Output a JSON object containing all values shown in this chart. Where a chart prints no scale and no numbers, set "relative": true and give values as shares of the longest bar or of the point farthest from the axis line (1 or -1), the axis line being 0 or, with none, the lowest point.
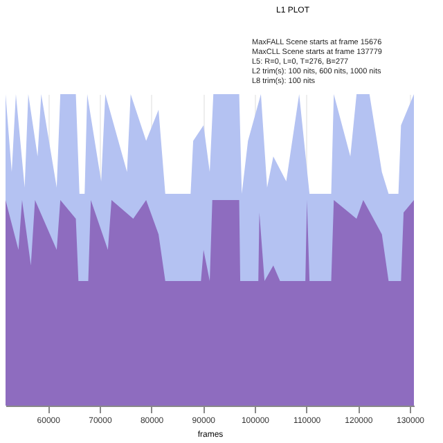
{
  "chart_data": {
    "type": "area",
    "title": "L1 PLOT",
    "xlabel": "frames",
    "relative": true,
    "grid": "x",
    "xlim": [
      51800,
      130800
    ],
    "xticks": [
      60000,
      70000,
      80000,
      90000,
      100000,
      110000,
      120000,
      130000
    ],
    "annotations": [
      "MaxFALL Scene starts at frame 15676",
      "MaxCLL Scene starts at frame 137779",
      "L5: R=0, L=0, T=276, B=277",
      "L2 trim(s): 100 nits, 600 nits, 1000 nits",
      "L8 trim(s): 100 nits"
    ],
    "series": [
      {
        "color": "#b4c2f2",
        "x": [
          51800,
          53000,
          53800,
          55500,
          56200,
          58000,
          58700,
          61700,
          62400,
          65400,
          66100,
          67100,
          67600,
          70300,
          71100,
          75300,
          76000,
          79000,
          81400,
          82700,
          87600,
          88100,
          90100,
          91300,
          92000,
          97000,
          97500,
          98700,
          101200,
          102400,
          103600,
          106100,
          108600,
          110600,
          114800,
          115300,
          118500,
          119700,
          122200,
          124600,
          125900,
          127800,
          128300,
          130800
        ],
        "values": [
          1.0,
          0.75,
          1.0,
          0.7,
          1.0,
          0.8,
          1.0,
          0.7,
          1.0,
          1.0,
          0.68,
          0.68,
          1.0,
          0.72,
          1.0,
          0.75,
          1.0,
          0.85,
          0.95,
          0.68,
          0.68,
          0.85,
          0.9,
          0.75,
          1.0,
          1.0,
          0.68,
          0.85,
          1.0,
          0.7,
          0.8,
          0.72,
          1.0,
          0.68,
          0.68,
          1.0,
          0.8,
          1.0,
          1.0,
          0.75,
          0.68,
          0.68,
          0.9,
          1.0
        ]
      },
      {
        "color": "#8e6cbf",
        "x": [
          51800,
          54300,
          55000,
          56700,
          57500,
          61700,
          62400,
          65400,
          65900,
          67800,
          68300,
          71600,
          72300,
          76500,
          79000,
          81400,
          82700,
          89600,
          90100,
          91300,
          91800,
          97000,
          97200,
          100700,
          100900,
          101900,
          103600,
          104900,
          109800,
          110100,
          110600,
          114800,
          115300,
          119700,
          121000,
          124600,
          125900,
          128300,
          128800,
          130800
        ],
        "values": [
          0.66,
          0.5,
          0.66,
          0.45,
          0.66,
          0.5,
          0.66,
          0.6,
          0.4,
          0.4,
          0.66,
          0.5,
          0.66,
          0.6,
          0.66,
          0.55,
          0.4,
          0.4,
          0.5,
          0.4,
          0.66,
          0.66,
          0.4,
          0.4,
          0.62,
          0.4,
          0.45,
          0.4,
          0.4,
          0.66,
          0.4,
          0.4,
          0.66,
          0.6,
          0.66,
          0.55,
          0.4,
          0.4,
          0.62,
          0.66
        ]
      }
    ]
  }
}
